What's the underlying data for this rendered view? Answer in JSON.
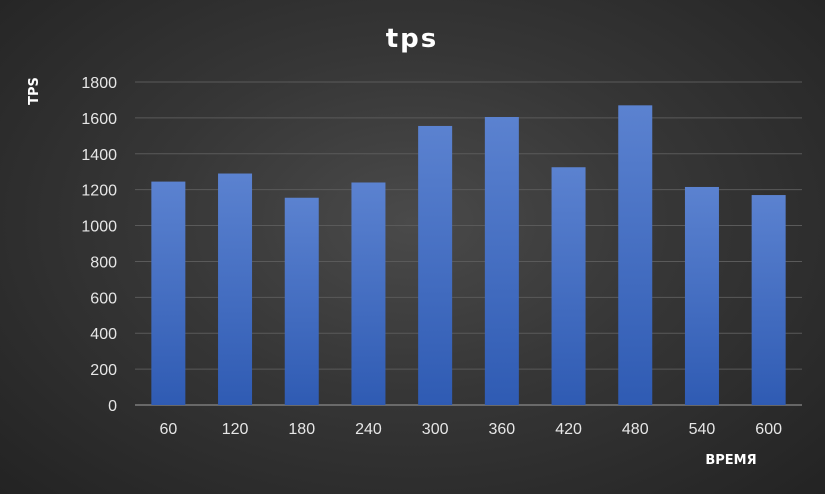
{
  "chart_data": {
    "type": "bar",
    "title": "tps",
    "xlabel": "ВРЕМЯ",
    "ylabel": "TPS",
    "categories": [
      "60",
      "120",
      "180",
      "240",
      "300",
      "360",
      "420",
      "480",
      "540",
      "600"
    ],
    "values": [
      1245,
      1290,
      1155,
      1240,
      1555,
      1605,
      1325,
      1670,
      1215,
      1170
    ],
    "ylim": [
      0,
      1800
    ],
    "yticks": [
      0,
      200,
      400,
      600,
      800,
      1000,
      1200,
      1400,
      1600,
      1800
    ],
    "grid": true,
    "legend": "none",
    "colors": {
      "bar_top": "#5b82d0",
      "bar_bottom": "#2f5bb3"
    }
  }
}
